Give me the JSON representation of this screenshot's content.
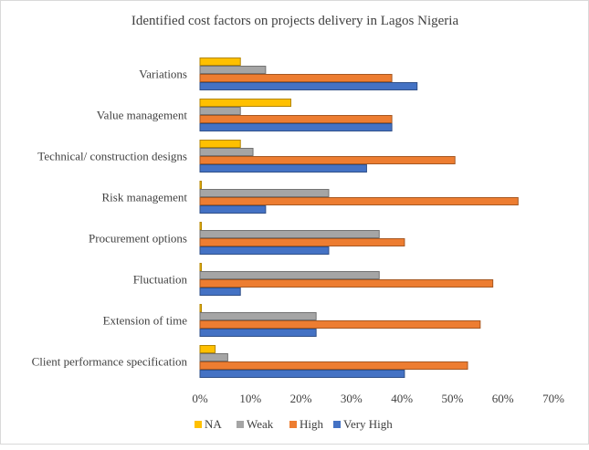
{
  "chart_data": {
    "type": "bar",
    "orientation": "horizontal",
    "title": "Identified cost factors on projects delivery in Lagos Nigeria",
    "categories": [
      "Variations",
      "Value management",
      "Technical/ construction designs",
      "Risk management",
      "Procurement options",
      "Fluctuation",
      "Extension of time",
      "Client performance specification"
    ],
    "series": [
      {
        "name": "NA",
        "color": "#FFC000",
        "values": [
          8,
          18,
          8,
          0,
          0,
          0,
          0,
          3
        ]
      },
      {
        "name": "Weak",
        "color": "#A5A5A5",
        "values": [
          13,
          8,
          10.5,
          25.5,
          35.5,
          35.5,
          23,
          5.5
        ]
      },
      {
        "name": "High",
        "color": "#ED7D31",
        "values": [
          38,
          38,
          50.5,
          63,
          40.5,
          58,
          55.5,
          53
        ]
      },
      {
        "name": "Very High",
        "color": "#4472C4",
        "values": [
          43,
          38,
          33,
          13,
          25.5,
          8,
          23,
          40.5
        ]
      }
    ],
    "xlim": [
      0,
      70
    ],
    "x_ticks": [
      "0%",
      "10%",
      "20%",
      "30%",
      "40%",
      "50%",
      "60%",
      "70%"
    ],
    "grid": false,
    "legend_position": "bottom"
  }
}
